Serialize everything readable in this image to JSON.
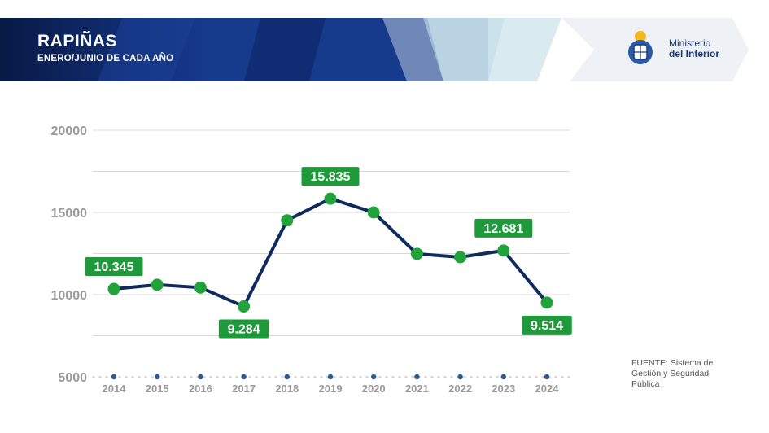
{
  "header": {
    "title": "RAPIÑAS",
    "subtitle": "ENERO/JUNIO DE CADA AÑO",
    "ministry_line1": "Ministerio",
    "ministry_line2": "del Interior",
    "logo_icon": "uruguay-coat-of-arms-icon"
  },
  "source": "FUENTE: Sistema de Gestión y Seguridad Pública",
  "colors": {
    "header_dark": "#0b1f4d",
    "line": "#0f2a5c",
    "marker": "#22a23a",
    "label_bg": "#1e9a3a",
    "axis_text": "#9a9a9a",
    "grid": "#d9d9d9"
  },
  "chart_data": {
    "type": "line",
    "title": "RAPIÑAS",
    "subtitle": "ENERO/JUNIO DE CADA AÑO",
    "xlabel": "",
    "ylabel": "",
    "categories": [
      "2014",
      "2015",
      "2016",
      "2017",
      "2018",
      "2019",
      "2020",
      "2021",
      "2022",
      "2023",
      "2024"
    ],
    "series": [
      {
        "values": [
          10345,
          10600,
          10430,
          9284,
          14520,
          15835,
          15000,
          12480,
          12280,
          12681,
          9514
        ]
      }
    ],
    "data_labels": [
      {
        "index": 0,
        "text": "10.345",
        "pos": "above"
      },
      {
        "index": 3,
        "text": "9.284",
        "pos": "below"
      },
      {
        "index": 5,
        "text": "15.835",
        "pos": "above"
      },
      {
        "index": 9,
        "text": "12.681",
        "pos": "above"
      },
      {
        "index": 10,
        "text": "9.514",
        "pos": "below"
      }
    ],
    "ylim": [
      5000,
      20000
    ],
    "yticks": [
      "5000",
      "10000",
      "15000",
      "20000"
    ],
    "grid": true
  }
}
